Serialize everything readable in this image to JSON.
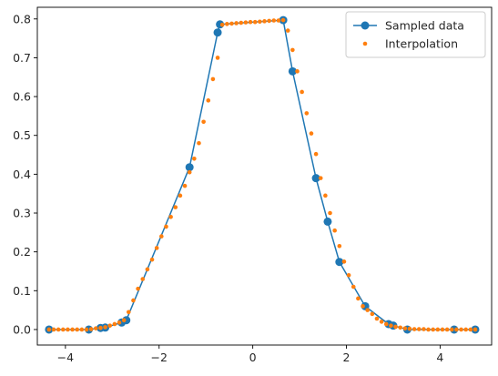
{
  "chart_data": {
    "type": "line",
    "title": "",
    "xlabel": "",
    "ylabel": "",
    "xlim": [
      -4.6,
      5.1
    ],
    "ylim": [
      -0.04,
      0.83
    ],
    "xticks": [
      -4,
      -2,
      0,
      2,
      4
    ],
    "yticks": [
      0.0,
      0.1,
      0.2,
      0.3,
      0.4,
      0.5,
      0.6,
      0.7,
      0.8
    ],
    "xtick_labels": [
      "−4",
      "−2",
      "0",
      "2",
      "4"
    ],
    "ytick_labels": [
      "0.0",
      "0.1",
      "0.2",
      "0.3",
      "0.4",
      "0.5",
      "0.6",
      "0.7",
      "0.8"
    ],
    "grid": false,
    "legend_position": "top-right",
    "series": [
      {
        "name": "Sampled data",
        "style": "line-circle-markers",
        "color": "#1f77b4",
        "x": [
          -4.35,
          -3.5,
          -3.25,
          -3.15,
          -2.8,
          -2.7,
          -0.75,
          -0.7,
          -1.35,
          0.65,
          0.85,
          1.35,
          1.6,
          1.85,
          2.4,
          2.9,
          3.0,
          3.3,
          4.3,
          4.75
        ],
        "y": [
          0.0,
          0.0,
          0.004,
          0.005,
          0.018,
          0.024,
          0.765,
          0.786,
          0.418,
          0.797,
          0.665,
          0.39,
          0.278,
          0.174,
          0.06,
          0.014,
          0.01,
          0.0,
          0.0,
          0.0
        ]
      },
      {
        "name": "Interpolation",
        "style": "dots",
        "color": "#ff7f0e",
        "x": [
          -4.35,
          -4.25,
          -4.15,
          -4.05,
          -3.95,
          -3.85,
          -3.75,
          -3.65,
          -3.55,
          -3.45,
          -3.35,
          -3.25,
          -3.15,
          -3.05,
          -2.95,
          -2.85,
          -2.75,
          -2.65,
          -2.55,
          -2.45,
          -2.35,
          -2.25,
          -2.15,
          -2.05,
          -1.95,
          -1.85,
          -1.75,
          -1.65,
          -1.55,
          -1.45,
          -1.35,
          -1.25,
          -1.15,
          -1.05,
          -0.95,
          -0.85,
          -0.75,
          -0.65,
          -0.55,
          -0.45,
          -0.35,
          -0.25,
          -0.15,
          -0.05,
          0.05,
          0.15,
          0.25,
          0.35,
          0.45,
          0.55,
          0.65,
          0.75,
          0.85,
          0.95,
          1.05,
          1.15,
          1.25,
          1.35,
          1.45,
          1.55,
          1.65,
          1.75,
          1.85,
          1.95,
          2.05,
          2.15,
          2.25,
          2.35,
          2.45,
          2.55,
          2.65,
          2.75,
          2.85,
          2.95,
          3.05,
          3.15,
          3.25,
          3.35,
          3.45,
          3.55,
          3.65,
          3.75,
          3.85,
          3.95,
          4.05,
          4.15,
          4.25,
          4.35,
          4.45,
          4.55,
          4.65,
          4.75
        ],
        "y": [
          0.0,
          0.0,
          0.0,
          0.0,
          0.0,
          0.0,
          0.0,
          0.0,
          0.0,
          0.001,
          0.003,
          0.004,
          0.006,
          0.01,
          0.014,
          0.018,
          0.024,
          0.045,
          0.075,
          0.105,
          0.13,
          0.155,
          0.18,
          0.21,
          0.24,
          0.265,
          0.29,
          0.315,
          0.345,
          0.37,
          0.405,
          0.44,
          0.48,
          0.535,
          0.59,
          0.645,
          0.7,
          0.785,
          0.787,
          0.788,
          0.789,
          0.79,
          0.791,
          0.792,
          0.792,
          0.793,
          0.794,
          0.795,
          0.796,
          0.796,
          0.797,
          0.77,
          0.72,
          0.665,
          0.612,
          0.557,
          0.505,
          0.452,
          0.39,
          0.345,
          0.3,
          0.255,
          0.215,
          0.175,
          0.14,
          0.11,
          0.08,
          0.06,
          0.05,
          0.04,
          0.028,
          0.02,
          0.014,
          0.01,
          0.007,
          0.005,
          0.003,
          0.002,
          0.001,
          0.001,
          0.001,
          0.0,
          0.0,
          0.0,
          0.0,
          0.0,
          0.0,
          0.0,
          0.0,
          0.0,
          0.0,
          0.0
        ]
      }
    ]
  }
}
